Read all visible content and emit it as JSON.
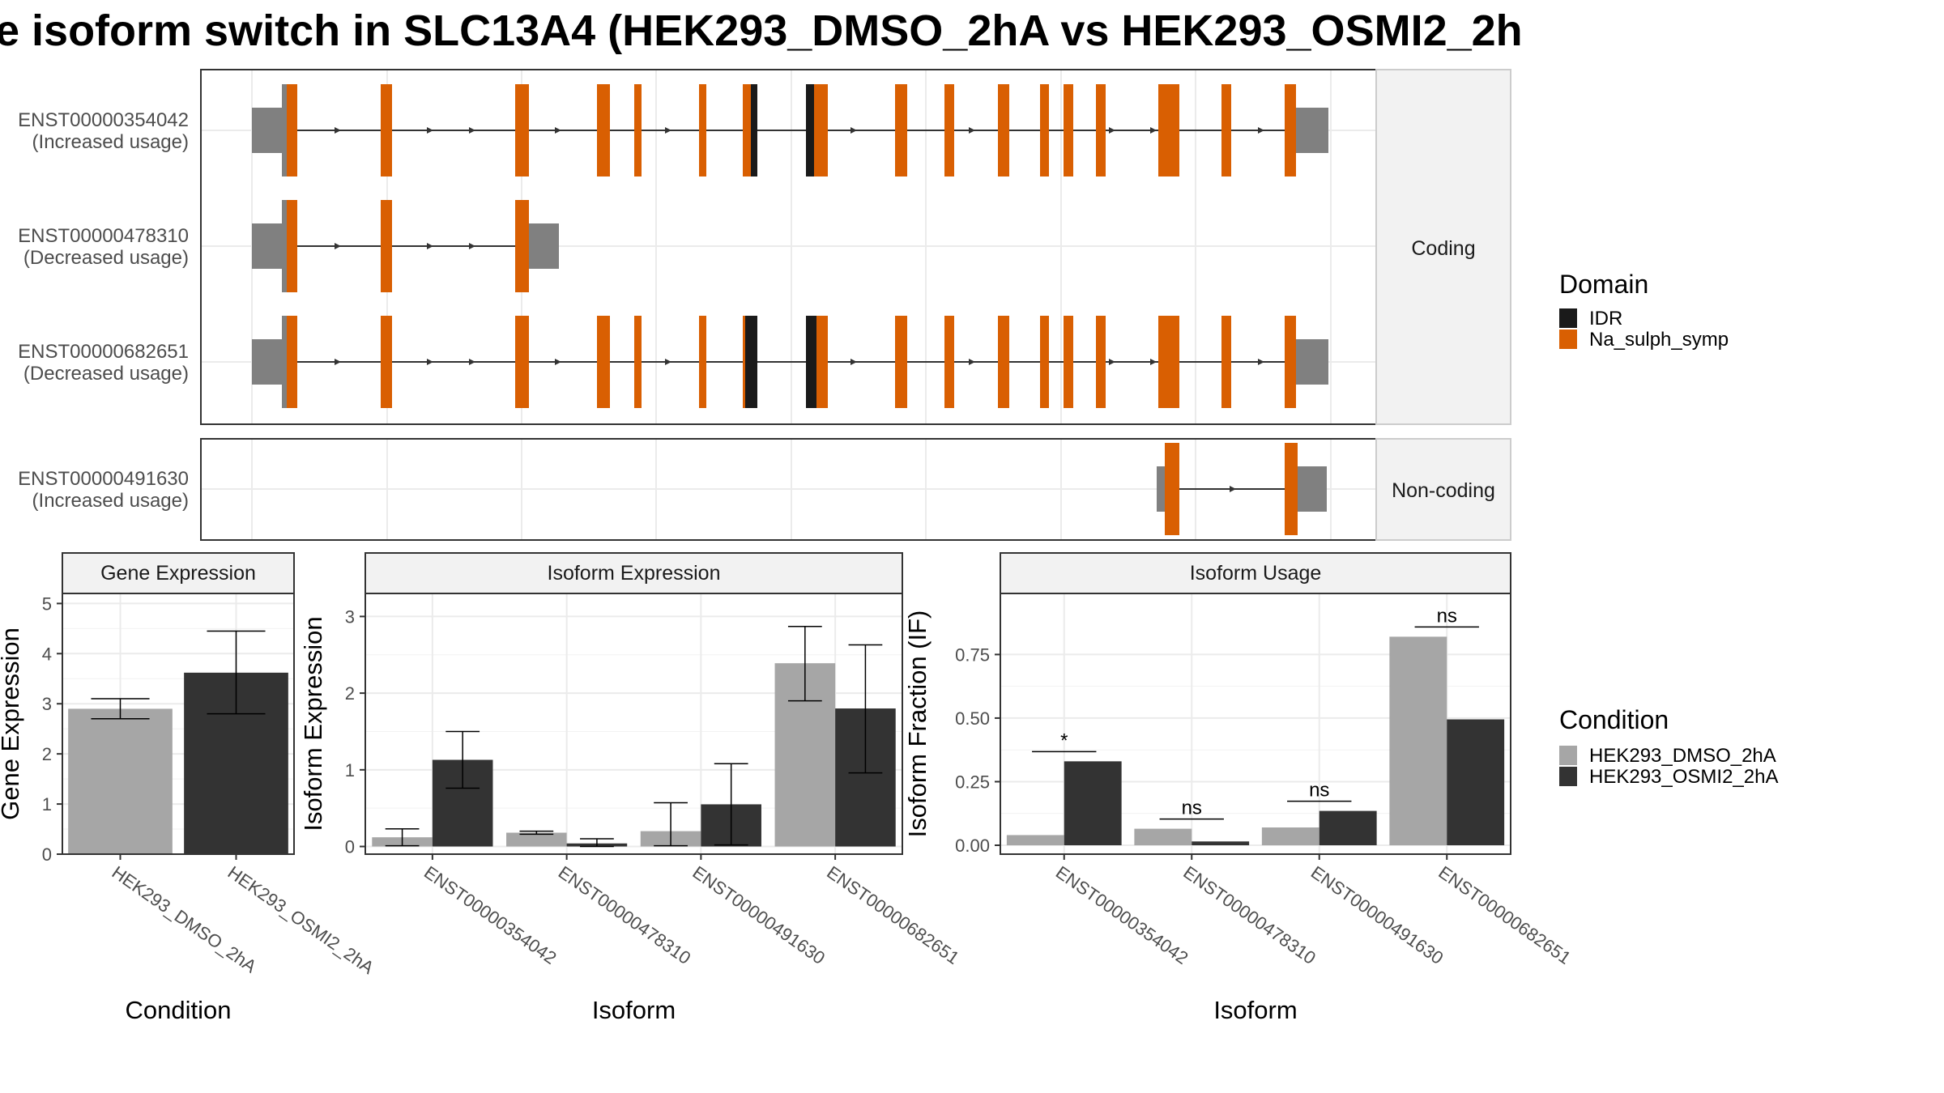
{
  "title": "e isoform switch in SLC13A4 (HEK293_DMSO_2hA vs HEK293_OSMI2_2h",
  "colors": {
    "IDR": "#1a1a1a",
    "Na_sulph_symp": "#d95f02",
    "utr": "#808080",
    "HEK293_DMSO_2hA": "#a6a6a6",
    "HEK293_OSMI2_2hA": "#333333",
    "strip": "#f2f2f2",
    "grid": "#ebebeb"
  },
  "structure": {
    "facets": [
      "Coding",
      "Non-coding"
    ],
    "isoforms": [
      {
        "id": "ENST00000354042",
        "usage": "(Increased usage)",
        "facet": "Coding"
      },
      {
        "id": "ENST00000478310",
        "usage": "(Decreased usage)",
        "facet": "Coding"
      },
      {
        "id": "ENST00000682651",
        "usage": "(Decreased usage)",
        "facet": "Coding"
      },
      {
        "id": "ENST00000491630",
        "usage": "(Increased usage)",
        "facet": "Non-coding"
      }
    ]
  },
  "legends": {
    "domain": {
      "title": "Domain",
      "items": [
        "IDR",
        "Na_sulph_symp"
      ]
    },
    "condition": {
      "title": "Condition",
      "items": [
        "HEK293_DMSO_2hA",
        "HEK293_OSMI2_2hA"
      ]
    }
  },
  "chart_data": [
    {
      "type": "bar",
      "panel": "Gene Expression",
      "categories": [
        "HEK293_DMSO_2hA",
        "HEK293_OSMI2_2hA"
      ],
      "values": [
        2.9,
        3.62
      ],
      "error_low": [
        2.7,
        2.8
      ],
      "error_high": [
        3.1,
        4.45
      ],
      "xlabel": "Condition",
      "ylabel": "Gene Expression",
      "ylim": [
        0,
        5.2
      ],
      "yticks": [
        0,
        1,
        2,
        3,
        4,
        5
      ]
    },
    {
      "type": "bar",
      "panel": "Isoform Expression",
      "categories": [
        "ENST00000354042",
        "ENST00000478310",
        "ENST00000491630",
        "ENST00000682651"
      ],
      "series": [
        {
          "name": "HEK293_DMSO_2hA",
          "values": [
            0.12,
            0.18,
            0.2,
            2.39
          ],
          "error_low": [
            0.01,
            0.16,
            0.01,
            1.9
          ],
          "error_high": [
            0.23,
            0.2,
            0.57,
            2.87
          ]
        },
        {
          "name": "HEK293_OSMI2_2hA",
          "values": [
            1.13,
            0.04,
            0.55,
            1.8
          ],
          "error_low": [
            0.76,
            0.0,
            0.02,
            0.96
          ],
          "error_high": [
            1.5,
            0.1,
            1.08,
            2.63
          ]
        }
      ],
      "xlabel": "Isoform",
      "ylabel": "Isoform Expression",
      "ylim": [
        -0.1,
        3.3
      ],
      "yticks": [
        0,
        1,
        2,
        3
      ]
    },
    {
      "type": "bar",
      "panel": "Isoform Usage",
      "categories": [
        "ENST00000354042",
        "ENST00000478310",
        "ENST00000491630",
        "ENST00000682651"
      ],
      "series": [
        {
          "name": "HEK293_DMSO_2hA",
          "values": [
            0.04,
            0.065,
            0.07,
            0.82
          ]
        },
        {
          "name": "HEK293_OSMI2_2hA",
          "values": [
            0.33,
            0.015,
            0.135,
            0.495
          ]
        }
      ],
      "significance": [
        "*",
        "ns",
        "ns",
        "ns"
      ],
      "xlabel": "Isoform",
      "ylabel": "Isoform Fraction (IF)",
      "ylim": [
        -0.035,
        0.99
      ],
      "yticks": [
        "0.00",
        "0.25",
        "0.50",
        "0.75"
      ]
    }
  ]
}
